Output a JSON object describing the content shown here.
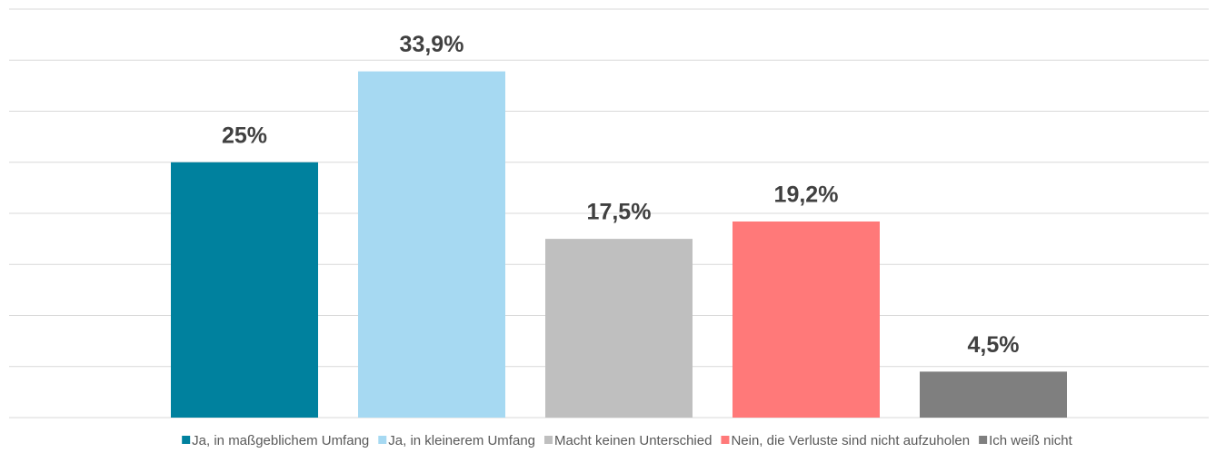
{
  "chart_data": {
    "type": "bar",
    "categories": [
      null
    ],
    "series": [
      {
        "name": "Ja, in maßgeblichem Umfang",
        "color": "#00819e",
        "values": [
          25
        ],
        "value_labels": [
          "25%"
        ]
      },
      {
        "name": "Ja, in kleinerem Umfang",
        "color": "#a6d9f2",
        "values": [
          33.9
        ],
        "value_labels": [
          "33,9%"
        ]
      },
      {
        "name": "Macht keinen Unterschied",
        "color": "#bfbfbf",
        "values": [
          17.5
        ],
        "value_labels": [
          "17,5%"
        ]
      },
      {
        "name": "Nein, die Verluste sind nicht aufzuholen",
        "color": "#ff7979",
        "values": [
          19.2
        ],
        "value_labels": [
          "19,2%"
        ]
      },
      {
        "name": "Ich weiß nicht",
        "color": "#7f7f7f",
        "values": [
          4.5
        ],
        "value_labels": [
          "4,5%"
        ]
      }
    ],
    "ylim": [
      0,
      40
    ],
    "yticks": [
      0,
      5,
      10,
      15,
      20,
      25,
      30,
      35,
      40
    ],
    "grid": true,
    "legend": "bottom"
  }
}
